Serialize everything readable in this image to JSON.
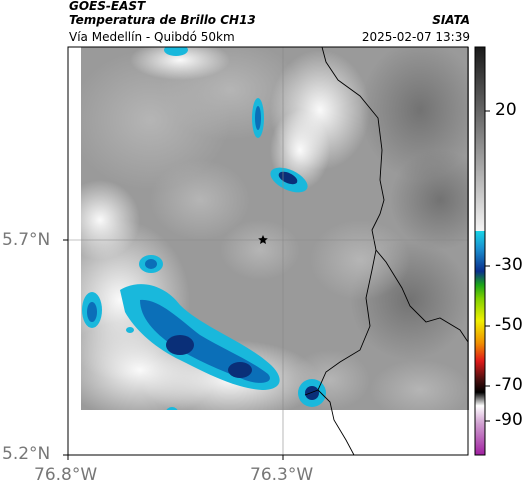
{
  "header": {
    "satellite": "GOES-EAST",
    "product": "Temperatura de Brillo CH13",
    "region": "Vía Medellín - Quibdó 50km",
    "organization": "SIATA",
    "datetime": "2025-02-07 13:39"
  },
  "map": {
    "lat_ticks": [
      "5.7°N",
      "5.2°N"
    ],
    "lon_ticks": [
      "76.8°W",
      "76.3°W"
    ],
    "marker_icon": "star-icon",
    "gridlines": true
  },
  "colorbar": {
    "ticks": [
      "20",
      "-30",
      "-50",
      "-70",
      "-90"
    ],
    "colors": {
      "warm_gray_top": "#222222",
      "warm_gray_bottom": "#f2f2f2",
      "cyan": "#19c3dc",
      "blue": "#0a3c8c",
      "green": "#1aa51a",
      "yellow": "#f0f000",
      "red": "#e01a1a",
      "black": "#000000",
      "magenta": "#c030c0"
    }
  },
  "colors": {
    "cloud_cyan": "#19b8dc",
    "cloud_blue": "#0b6fb8",
    "cloud_deep": "#0a2f78",
    "border": "#000000"
  }
}
